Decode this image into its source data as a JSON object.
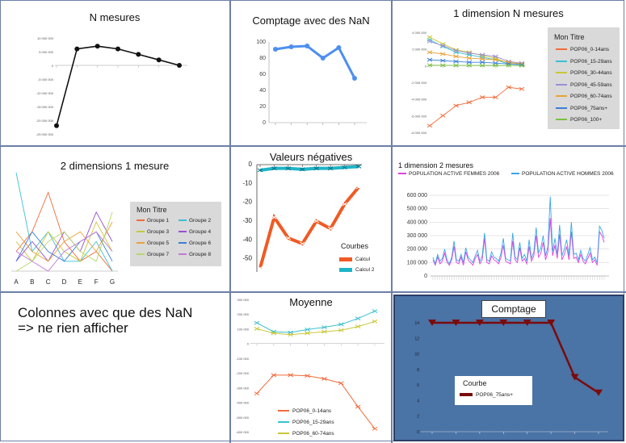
{
  "chart_data": [
    {
      "type": "line",
      "title": "N mesures",
      "y_ticks": [
        "10 000 000",
        "5 000 000",
        "0",
        "-5 000 000",
        "-10 000 000",
        "-15 000 000",
        "-20 000 000",
        "-25 000 000"
      ],
      "ylim": [
        -25000000,
        10000000
      ],
      "x_tick_labels": [
        "",
        "",
        "",
        "",
        "",
        "",
        "",
        ""
      ],
      "series": [
        {
          "values": [
            -22000000,
            6000000,
            7000000,
            6000000,
            4000000,
            2000000,
            0
          ]
        }
      ]
    },
    {
      "type": "line",
      "title": "Comptage avec des NaN",
      "y_ticks": [
        "100",
        "80",
        "60",
        "40",
        "20",
        "0"
      ],
      "ylim": [
        0,
        100
      ],
      "series": [
        {
          "values": [
            91,
            94,
            95,
            80,
            93,
            55
          ]
        }
      ]
    },
    {
      "type": "line",
      "title": "1 dimension N mesures",
      "y_ticks": [
        "4 000 000",
        "2 000 000",
        "0",
        "-2 000 000",
        "-4 000 000",
        "-6 000 000",
        "-8 000 000"
      ],
      "ylim": [
        -8000000,
        4000000
      ],
      "legend_title": "Mon Titre",
      "series": [
        {
          "name": "POP06_0-14ans",
          "color": "#f26b3a",
          "values": [
            -7200000,
            -6000000,
            -4800000,
            -4400000,
            -3800000,
            -3800000,
            -2600000,
            -2800000
          ]
        },
        {
          "name": "POP06_15-29ans",
          "color": "#3cc0d0",
          "values": [
            3100000,
            2300000,
            1600000,
            1300000,
            1000000,
            700000,
            200000,
            200000
          ]
        },
        {
          "name": "POP06_30-44ans",
          "color": "#c8c83a",
          "values": [
            3400000,
            2600000,
            1900000,
            1600000,
            1200000,
            900000,
            300000,
            300000
          ]
        },
        {
          "name": "POP06_45-59ans",
          "color": "#9b8fd6",
          "values": [
            2900000,
            2400000,
            1800000,
            1500000,
            1300000,
            1100000,
            500000,
            300000
          ]
        },
        {
          "name": "POP06_60-74ans",
          "color": "#e8a23a",
          "values": [
            1600000,
            1400000,
            1100000,
            900000,
            800000,
            700000,
            400000,
            200000
          ]
        },
        {
          "name": "POP06_75ans+",
          "color": "#3a7fd6",
          "values": [
            700000,
            600000,
            500000,
            400000,
            400000,
            300000,
            200000,
            100000
          ]
        },
        {
          "name": "POP06_100+",
          "color": "#7ac043",
          "values": [
            50000,
            40000,
            30000,
            30000,
            20000,
            20000,
            10000,
            10000
          ]
        }
      ]
    },
    {
      "type": "line",
      "title": "2 dimensions 1 mesure",
      "categories": [
        "A",
        "B",
        "C",
        "D",
        "E",
        "F",
        "G"
      ],
      "ylim": [
        0,
        10
      ],
      "legend_title": "Mon Titre",
      "series": [
        {
          "name": "Groupe 1",
          "color": "#f26b3a",
          "values": [
            2,
            4,
            8,
            3,
            1,
            2,
            0
          ]
        },
        {
          "name": "Groupe 2",
          "color": "#3cc0d0",
          "values": [
            10,
            2,
            4,
            1,
            1,
            3,
            0
          ]
        },
        {
          "name": "Groupe 3",
          "color": "#c8c83a",
          "values": [
            3,
            1,
            4,
            2,
            1,
            5,
            2
          ]
        },
        {
          "name": "Groupe 4",
          "color": "#9b4fd6",
          "values": [
            1,
            3,
            1,
            4,
            2,
            6,
            3
          ]
        },
        {
          "name": "Groupe 5",
          "color": "#e8a23a",
          "values": [
            4,
            2,
            1,
            3,
            4,
            2,
            5
          ]
        },
        {
          "name": "Groupe 6",
          "color": "#3a7fd6",
          "values": [
            1,
            4,
            2,
            1,
            3,
            4,
            1
          ]
        },
        {
          "name": "Groupe 7",
          "color": "#b7d96a",
          "values": [
            0,
            1,
            3,
            4,
            2,
            1,
            6
          ]
        },
        {
          "name": "Groupe 8",
          "color": "#c07ad6",
          "values": [
            2,
            1,
            0,
            2,
            3,
            4,
            2
          ]
        }
      ]
    },
    {
      "type": "line",
      "title": "Valeurs négatives",
      "y_ticks": [
        "0",
        "-10",
        "-20",
        "-30",
        "-40",
        "-50"
      ],
      "ylim": [
        -57,
        0
      ],
      "legend_title": "Courbes",
      "series": [
        {
          "name": "Calcul",
          "color": "#f05a23",
          "values": [
            -55,
            -28,
            -39,
            -42,
            -30,
            -34,
            -21,
            -12
          ]
        },
        {
          "name": "Calcul 2",
          "color": "#1fb5c8",
          "values": [
            -3,
            -2,
            -2,
            -2.5,
            -2,
            -2,
            -1.5,
            -1
          ]
        }
      ]
    },
    {
      "type": "line",
      "title": "1 dimension 2 mesures",
      "y_ticks": [
        "600 000",
        "500 000",
        "400 000",
        "300 000",
        "200 000",
        "100 000",
        "0"
      ],
      "ylim": [
        0,
        600000
      ],
      "series": [
        {
          "name": "POPULATION ACTIVE FEMMES 2006",
          "color": "#e040e0",
          "values": [
            120000,
            80000,
            140000,
            90000,
            110000,
            170000,
            100000,
            80000,
            120000,
            220000,
            100000,
            90000,
            140000,
            80000,
            180000,
            120000,
            100000,
            80000,
            130000,
            160000,
            90000,
            120000,
            280000,
            100000,
            90000,
            150000,
            120000,
            110000,
            90000,
            140000,
            230000,
            110000,
            100000,
            90000,
            260000,
            120000,
            100000,
            210000,
            110000,
            130000,
            90000,
            220000,
            110000,
            150000,
            300000,
            140000,
            170000,
            250000,
            120000,
            180000,
            430000,
            150000,
            230000,
            130000,
            310000,
            120000,
            160000,
            220000,
            120000,
            330000,
            130000,
            140000,
            100000,
            160000,
            110000,
            90000,
            130000,
            170000,
            100000,
            120000,
            80000,
            330000,
            300000,
            250000
          ]
        },
        {
          "name": "POPULATION ACTIVE HOMMES 2006",
          "color": "#3aa6e8",
          "values": [
            140000,
            90000,
            160000,
            110000,
            130000,
            200000,
            120000,
            90000,
            140000,
            260000,
            120000,
            110000,
            160000,
            100000,
            210000,
            140000,
            120000,
            100000,
            150000,
            190000,
            110000,
            150000,
            320000,
            120000,
            110000,
            180000,
            140000,
            130000,
            110000,
            170000,
            280000,
            130000,
            120000,
            110000,
            320000,
            140000,
            120000,
            250000,
            130000,
            160000,
            110000,
            270000,
            130000,
            180000,
            360000,
            170000,
            210000,
            300000,
            150000,
            220000,
            590000,
            180000,
            280000,
            160000,
            380000,
            150000,
            200000,
            270000,
            150000,
            400000,
            160000,
            170000,
            120000,
            190000,
            130000,
            110000,
            160000,
            210000,
            120000,
            140000,
            100000,
            370000,
            340000,
            280000
          ]
        }
      ]
    },
    {
      "type": "line",
      "title": "Colonnes avec que des NaN\n=> ne rien afficher",
      "series": []
    },
    {
      "type": "line",
      "title": "Moyenne",
      "y_ticks": [
        "300 000",
        "200 000",
        "100 000",
        "0",
        "-100 000",
        "-200 000",
        "-300 000",
        "-400 000",
        "-500 000",
        "-600 000"
      ],
      "ylim": [
        -600000,
        300000
      ],
      "series": [
        {
          "name": "POP06_0-14ans",
          "color": "#f26b3a",
          "values": [
            -340000,
            -215000,
            -215000,
            -220000,
            -240000,
            -270000,
            -430000,
            -580000
          ]
        },
        {
          "name": "POP06_15-29ans",
          "color": "#3cc0d0",
          "values": [
            140000,
            80000,
            75000,
            95000,
            110000,
            130000,
            170000,
            220000
          ]
        },
        {
          "name": "POP06_60-74ans",
          "color": "#c8c83a",
          "values": [
            100000,
            70000,
            60000,
            70000,
            80000,
            90000,
            115000,
            150000
          ]
        }
      ]
    },
    {
      "type": "line",
      "title": "Comptage",
      "y_ticks": [
        "14",
        "12",
        "10",
        "8",
        "6",
        "4",
        "2",
        "0"
      ],
      "ylim": [
        0,
        14
      ],
      "legend_title": "Courbe",
      "series": [
        {
          "name": "POP06_75ans+",
          "color": "#7a0b0b",
          "values": [
            14,
            14,
            14,
            14,
            14,
            14,
            7,
            5
          ]
        }
      ]
    }
  ]
}
